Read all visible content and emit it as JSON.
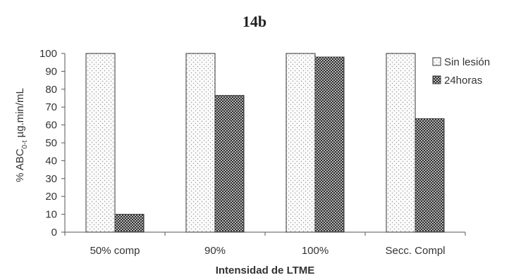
{
  "chart_data": {
    "type": "bar",
    "title": "14b",
    "xlabel": "Intensidad de LTME",
    "ylabel_main": "% ABC",
    "ylabel_sub": "0-t",
    "ylabel_unit": " µg.min/mL",
    "categories": [
      "50% comp",
      "90%",
      "100%",
      "Secc. Compl"
    ],
    "series": [
      {
        "name": "Sin lesión",
        "values": [
          100,
          100,
          100,
          100
        ],
        "pattern": "dots"
      },
      {
        "name": "24horas",
        "values": [
          10,
          76.5,
          98,
          63.5
        ],
        "pattern": "crosshatch"
      }
    ],
    "ylim": [
      0,
      100
    ],
    "yticks": [
      0,
      10,
      20,
      30,
      40,
      50,
      60,
      70,
      80,
      90,
      100
    ],
    "grid": false,
    "legend_position": "top-right"
  }
}
